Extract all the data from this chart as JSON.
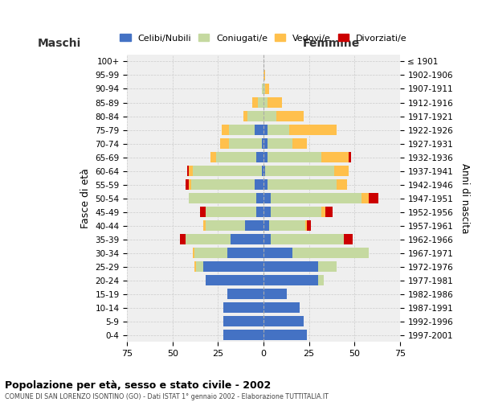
{
  "age_groups": [
    "0-4",
    "5-9",
    "10-14",
    "15-19",
    "20-24",
    "25-29",
    "30-34",
    "35-39",
    "40-44",
    "45-49",
    "50-54",
    "55-59",
    "60-64",
    "65-69",
    "70-74",
    "75-79",
    "80-84",
    "85-89",
    "90-94",
    "95-99",
    "100+"
  ],
  "birth_years": [
    "1997-2001",
    "1992-1996",
    "1987-1991",
    "1982-1986",
    "1977-1981",
    "1972-1976",
    "1967-1971",
    "1962-1966",
    "1957-1961",
    "1952-1956",
    "1947-1951",
    "1942-1946",
    "1937-1941",
    "1932-1936",
    "1927-1931",
    "1922-1926",
    "1917-1921",
    "1912-1916",
    "1907-1911",
    "1902-1906",
    "≤ 1901"
  ],
  "maschi": {
    "celibi": [
      22,
      22,
      22,
      20,
      32,
      33,
      20,
      18,
      10,
      4,
      4,
      5,
      1,
      4,
      1,
      5,
      0,
      0,
      0,
      0,
      0
    ],
    "coniugati": [
      0,
      0,
      0,
      0,
      0,
      4,
      18,
      25,
      22,
      28,
      37,
      35,
      38,
      22,
      18,
      14,
      9,
      3,
      1,
      0,
      0
    ],
    "vedovi": [
      0,
      0,
      0,
      0,
      0,
      1,
      1,
      0,
      1,
      0,
      0,
      1,
      2,
      3,
      5,
      4,
      2,
      3,
      0,
      0,
      0
    ],
    "divorziati": [
      0,
      0,
      0,
      0,
      0,
      0,
      0,
      3,
      0,
      3,
      0,
      2,
      1,
      0,
      0,
      0,
      0,
      0,
      0,
      0,
      0
    ]
  },
  "femmine": {
    "nubili": [
      24,
      22,
      20,
      13,
      30,
      30,
      16,
      4,
      3,
      4,
      4,
      2,
      1,
      2,
      2,
      2,
      0,
      0,
      0,
      0,
      0
    ],
    "coniugate": [
      0,
      0,
      0,
      0,
      3,
      10,
      42,
      40,
      20,
      28,
      50,
      38,
      38,
      30,
      14,
      12,
      7,
      2,
      1,
      0,
      0
    ],
    "vedove": [
      0,
      0,
      0,
      0,
      0,
      0,
      0,
      0,
      1,
      2,
      4,
      6,
      8,
      15,
      8,
      26,
      15,
      8,
      2,
      1,
      0
    ],
    "divorziate": [
      0,
      0,
      0,
      0,
      0,
      0,
      0,
      5,
      2,
      4,
      5,
      0,
      0,
      1,
      0,
      0,
      0,
      0,
      0,
      0,
      0
    ]
  },
  "colors": {
    "celibi": "#4472c4",
    "coniugati": "#c5d9a0",
    "vedovi": "#ffc04c",
    "divorziati": "#cc0000"
  },
  "xlim": 75,
  "title": "Popolazione per età, sesso e stato civile - 2002",
  "subtitle": "COMUNE DI SAN LORENZO ISONTINO (GO) - Dati ISTAT 1° gennaio 2002 - Elaborazione TUTTITALIA.IT",
  "xlabel_left": "Maschi",
  "xlabel_right": "Femmine",
  "ylabel_left": "Fasce di età",
  "ylabel_right": "Anni di nascita",
  "legend_labels": [
    "Celibi/Nubili",
    "Coniugati/e",
    "Vedovi/e",
    "Divorziati/e"
  ],
  "bg_color": "#ffffff",
  "plot_bg_color": "#efefef"
}
